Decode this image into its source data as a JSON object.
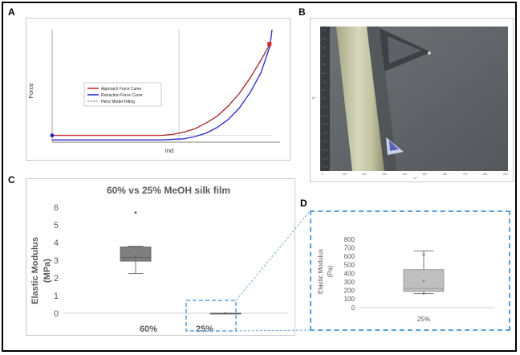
{
  "panels": {
    "a": {
      "label": "A"
    },
    "b": {
      "label": "B"
    },
    "c": {
      "label": "C"
    },
    "d": {
      "label": "D"
    }
  },
  "chart_data": [
    {
      "panel": "A",
      "type": "line",
      "title": "",
      "xlabel": "Ind",
      "ylabel": "Force",
      "legend": [
        "Approach Force Curve",
        "Retraction Force Curve",
        "Hertz Model Fitting"
      ],
      "legend_position": "center-left",
      "series": [
        {
          "name": "Approach Force Curve",
          "color": "#d03030",
          "x": [
            0,
            0.1,
            0.2,
            0.3,
            0.4,
            0.5,
            0.55,
            0.6,
            0.65,
            0.7,
            0.75,
            0.8,
            0.85,
            0.9,
            0.95,
            0.99
          ],
          "y": [
            0.06,
            0.06,
            0.06,
            0.06,
            0.06,
            0.06,
            0.07,
            0.09,
            0.12,
            0.17,
            0.23,
            0.32,
            0.43,
            0.57,
            0.73,
            0.87
          ]
        },
        {
          "name": "Retraction Force Curve",
          "color": "#3030d0",
          "x": [
            0,
            0.1,
            0.2,
            0.3,
            0.4,
            0.5,
            0.55,
            0.6,
            0.65,
            0.7,
            0.75,
            0.8,
            0.85,
            0.9,
            0.95,
            0.99,
            1.0
          ],
          "y": [
            0.02,
            0.02,
            0.02,
            0.02,
            0.02,
            0.02,
            0.025,
            0.03,
            0.05,
            0.08,
            0.13,
            0.2,
            0.3,
            0.44,
            0.62,
            0.85,
            1.0
          ]
        },
        {
          "name": "Hertz Model Fitting",
          "color": "#404040",
          "x": [
            0.5,
            0.55,
            0.6,
            0.65,
            0.7,
            0.75,
            0.8,
            0.85,
            0.9,
            0.95,
            0.99
          ],
          "y": [
            0.06,
            0.07,
            0.09,
            0.12,
            0.17,
            0.23,
            0.32,
            0.43,
            0.57,
            0.73,
            0.87
          ]
        }
      ],
      "markers": [
        {
          "series": "Retraction Force Curve",
          "x": 0.0,
          "y": 0.06
        },
        {
          "series": "Approach Force Curve",
          "x": 0.99,
          "y": 0.87
        }
      ]
    },
    {
      "panel": "B",
      "type": "image",
      "x_ticks": [
        "0",
        "100",
        "200",
        "300",
        "400",
        "500",
        "600",
        "700",
        "800",
        "900"
      ],
      "y_ticks": [
        "100",
        "200",
        "300",
        "400",
        "500",
        "600",
        "700",
        "800",
        "900",
        "1000",
        "1100",
        "1200",
        "1300",
        "1400",
        "1500",
        "1600",
        "1700"
      ],
      "xlabel": "x/*",
      "ylabel": "y/*"
    },
    {
      "panel": "C",
      "type": "box",
      "title": "60% vs 25% MeOH silk film",
      "ylabel": "Elastic Modulus (MPa)",
      "categories": [
        "60%",
        "25%"
      ],
      "ylim": [
        0,
        6
      ],
      "y_ticks": [
        0,
        1,
        2,
        3,
        4,
        5,
        6
      ],
      "boxes": [
        {
          "category": "60%",
          "min": 2.25,
          "q1": 2.95,
          "median": 3.15,
          "q3": 3.75,
          "max": 3.8,
          "mean": 3.2,
          "outliers": [
            5.7
          ]
        },
        {
          "category": "25%",
          "min": 0.0,
          "q1": 0.0,
          "median": 0.0,
          "q3": 0.0,
          "max": 0.0,
          "mean": 0.0,
          "outliers": []
        }
      ]
    },
    {
      "panel": "D",
      "type": "box",
      "title": "",
      "ylabel": "Elastic Modulus (Pa)",
      "categories": [
        "25%"
      ],
      "ylim": [
        0,
        800
      ],
      "y_ticks": [
        0,
        100,
        200,
        300,
        400,
        500,
        600,
        700,
        800
      ],
      "boxes": [
        {
          "category": "25%",
          "min": 165,
          "q1": 190,
          "median": 225,
          "q3": 445,
          "max": 665,
          "mean": 310,
          "points": [
            165,
            620
          ],
          "outliers": []
        }
      ]
    }
  ]
}
